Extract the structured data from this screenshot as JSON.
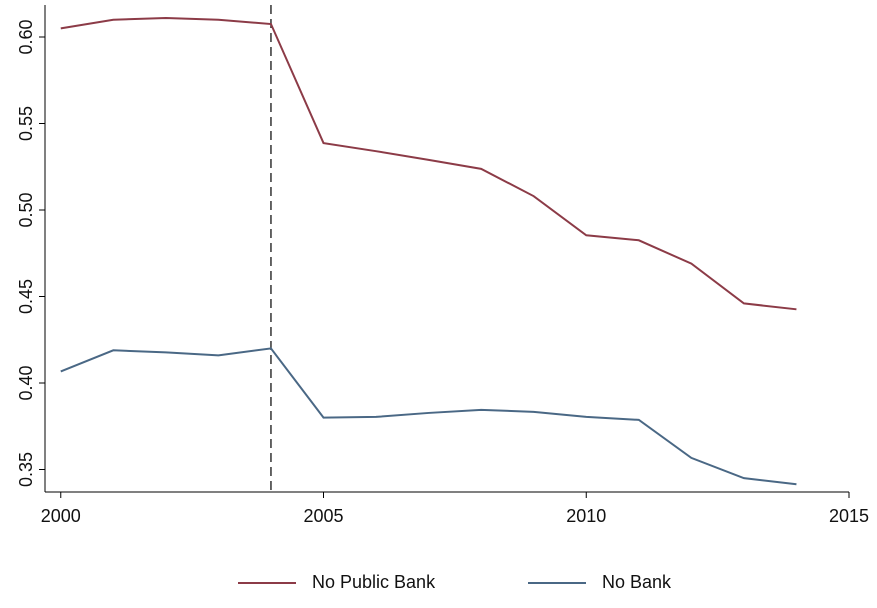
{
  "chart_data": {
    "type": "line",
    "x": [
      2000,
      2001,
      2002,
      2003,
      2004,
      2005,
      2006,
      2007,
      2008,
      2009,
      2010,
      2011,
      2012,
      2013,
      2014
    ],
    "series": [
      {
        "name": "No Public Bank",
        "color": "#8c3b47",
        "values": [
          0.605,
          0.61,
          0.611,
          0.61,
          0.6075,
          0.5387,
          0.534,
          0.529,
          0.5238,
          0.508,
          0.4854,
          0.4825,
          0.469,
          0.446,
          0.4426
        ]
      },
      {
        "name": "No Bank",
        "color": "#4a6885",
        "values": [
          0.4067,
          0.4189,
          0.4177,
          0.416,
          0.42,
          0.38,
          0.3804,
          0.3827,
          0.3845,
          0.3833,
          0.3804,
          0.3787,
          0.3567,
          0.345,
          0.3415
        ]
      }
    ],
    "xlim": [
      1999.7,
      2015
    ],
    "xticks": [
      2000,
      2005,
      2010,
      2015
    ],
    "ylim": [
      0.337,
      0.6185
    ],
    "yticks": [
      0.35,
      {
        "value": 0.4,
        "label": "0.40"
      },
      0.45,
      {
        "value": 0.5,
        "label": "0.50"
      },
      0.55,
      {
        "value": 0.6,
        "label": "0.60"
      }
    ],
    "reference_line": {
      "x": 2004,
      "style": "dashed"
    },
    "legend": "bottom"
  }
}
